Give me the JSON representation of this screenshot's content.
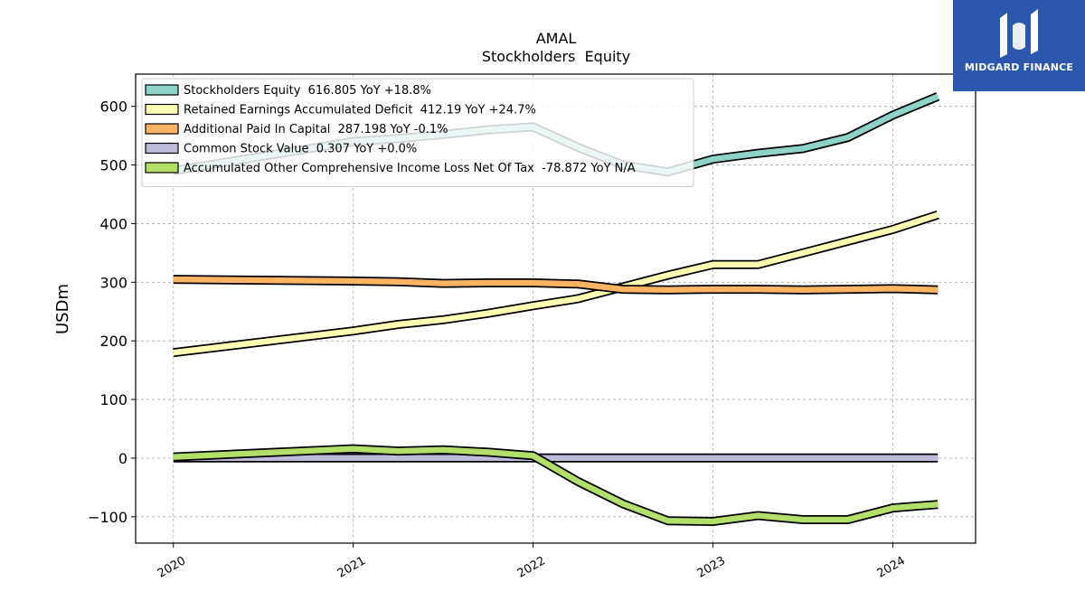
{
  "chart_data": {
    "type": "line",
    "title": "AMAL",
    "subtitle": "Stockholders  Equity",
    "ylabel": "USDm",
    "xlabel": "",
    "ylim": [
      -145,
      655
    ],
    "xlim": [
      2019.79,
      2024.46
    ],
    "yticks": [
      -100,
      0,
      100,
      200,
      300,
      400,
      500,
      600
    ],
    "xticks": [
      "2020",
      "2021",
      "2022",
      "2023",
      "2024"
    ],
    "grid": true,
    "legend_position": "upper-left",
    "series": [
      {
        "name": "Stockholders Equity",
        "legend_label": "Stockholders Equity  616.805 YoY +18.8%",
        "color": "#8ed3c7",
        "points": [
          [
            2020.0,
            490
          ],
          [
            2021.0,
            540
          ],
          [
            2021.25,
            545
          ],
          [
            2021.5,
            552
          ],
          [
            2021.75,
            560
          ],
          [
            2022.0,
            565
          ],
          [
            2022.25,
            530
          ],
          [
            2022.5,
            500
          ],
          [
            2022.75,
            488
          ],
          [
            2023.0,
            510
          ],
          [
            2023.25,
            520
          ],
          [
            2023.5,
            528
          ],
          [
            2023.75,
            547
          ],
          [
            2024.0,
            585
          ],
          [
            2024.25,
            617
          ]
        ]
      },
      {
        "name": "Retained Earnings Accumulated Deficit",
        "legend_label": "Retained Earnings Accumulated Deficit  412.19 YoY +24.7%",
        "color": "#ffffb3",
        "points": [
          [
            2020.0,
            180
          ],
          [
            2021.0,
            217
          ],
          [
            2021.25,
            228
          ],
          [
            2021.5,
            236
          ],
          [
            2021.75,
            247
          ],
          [
            2022.0,
            260
          ],
          [
            2022.25,
            272
          ],
          [
            2022.5,
            292
          ],
          [
            2022.75,
            312
          ],
          [
            2023.0,
            330
          ],
          [
            2023.25,
            330
          ],
          [
            2023.5,
            350
          ],
          [
            2023.75,
            370
          ],
          [
            2024.0,
            390
          ],
          [
            2024.25,
            415
          ]
        ]
      },
      {
        "name": "Additional Paid In Capital",
        "legend_label": "Additional Paid In Capital  287.198 YoY -0.1%",
        "color": "#fdb462",
        "points": [
          [
            2020.0,
            305
          ],
          [
            2021.0,
            302
          ],
          [
            2021.25,
            301
          ],
          [
            2021.5,
            298
          ],
          [
            2021.75,
            299
          ],
          [
            2022.0,
            299
          ],
          [
            2022.25,
            297
          ],
          [
            2022.5,
            288
          ],
          [
            2022.75,
            287
          ],
          [
            2023.0,
            288
          ],
          [
            2023.25,
            288
          ],
          [
            2023.5,
            287
          ],
          [
            2023.75,
            288
          ],
          [
            2024.0,
            289
          ],
          [
            2024.25,
            287
          ]
        ]
      },
      {
        "name": "Common Stock Value",
        "legend_label": "Common Stock Value  0.307 YoY +0.0%",
        "color": "#bebada",
        "points": [
          [
            2020.0,
            0.3
          ],
          [
            2024.25,
            0.307
          ]
        ]
      },
      {
        "name": "Accumulated Other Comprehensive Income Loss Net Of Tax",
        "legend_label": "Accumulated Other Comprehensive Income Loss Net Of Tax  -78.872 YoY N/A",
        "color": "#b3de69",
        "points": [
          [
            2020.0,
            2
          ],
          [
            2021.0,
            16
          ],
          [
            2021.25,
            12
          ],
          [
            2021.5,
            14
          ],
          [
            2021.75,
            10
          ],
          [
            2022.0,
            4
          ],
          [
            2022.25,
            -40
          ],
          [
            2022.5,
            -78
          ],
          [
            2022.75,
            -107
          ],
          [
            2023.0,
            -108
          ],
          [
            2023.25,
            -98
          ],
          [
            2023.5,
            -105
          ],
          [
            2023.75,
            -105
          ],
          [
            2024.0,
            -85
          ],
          [
            2024.25,
            -79
          ]
        ]
      }
    ]
  },
  "watermark": {
    "text": "MIDGARD FINANCE",
    "background": "#2b58ad"
  }
}
